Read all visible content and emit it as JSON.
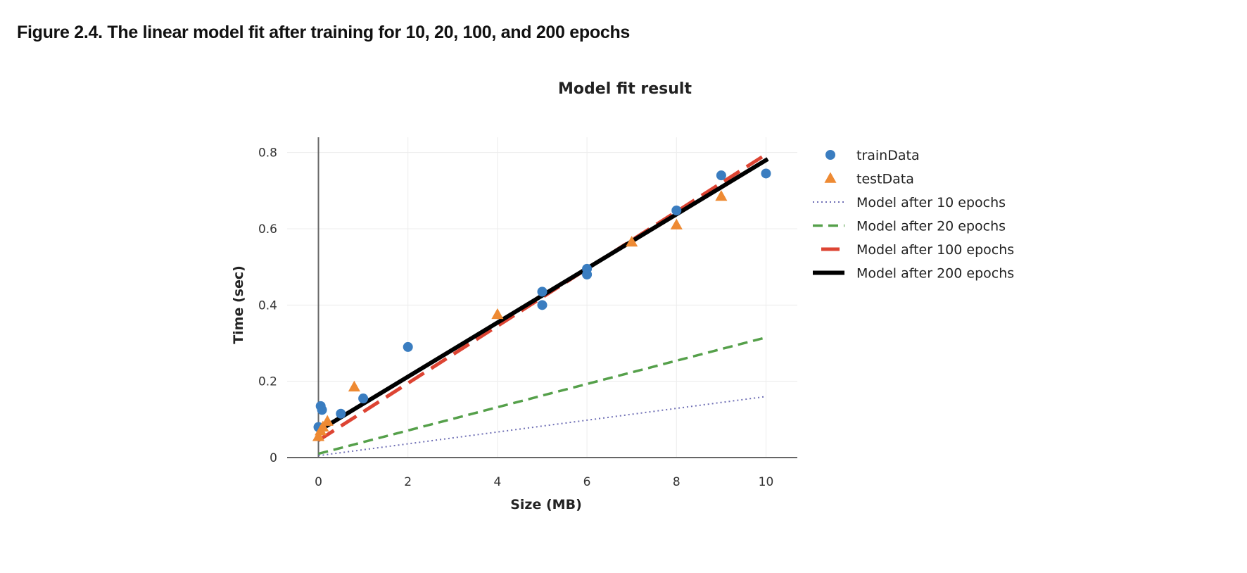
{
  "figure": {
    "caption": "Figure 2.4. The linear model fit after training for 10, 20, 100, and 200 epochs"
  },
  "chart_data": {
    "type": "scatter",
    "title": "Model fit result",
    "xlabel": "Size (MB)",
    "ylabel": "Time (sec)",
    "xlim": [
      -0.7,
      10.7
    ],
    "ylim": [
      0,
      0.84
    ],
    "x_ticks": [
      0,
      2,
      4,
      6,
      8,
      10
    ],
    "y_ticks": [
      0,
      0.2,
      0.4,
      0.6,
      0.8
    ],
    "y_tick_labels": [
      "0",
      "0.2",
      "0.4",
      "0.6",
      "0.8"
    ],
    "grid": true,
    "legend_position": "right",
    "series": [
      {
        "name": "trainData",
        "kind": "points",
        "marker": "circle",
        "color": "#3a7dc0",
        "x": [
          0.0,
          0.05,
          0.08,
          0.5,
          1.0,
          2.0,
          5.0,
          5.0,
          6.0,
          6.0,
          8.0,
          9.0,
          10.0
        ],
        "y": [
          0.08,
          0.135,
          0.125,
          0.115,
          0.155,
          0.29,
          0.435,
          0.4,
          0.495,
          0.48,
          0.648,
          0.74,
          0.745
        ]
      },
      {
        "name": "testData",
        "kind": "points",
        "marker": "triangle",
        "color": "#ee8a33",
        "x": [
          0.0,
          0.05,
          0.1,
          0.2,
          0.8,
          4.0,
          7.0,
          8.0,
          9.0
        ],
        "y": [
          0.055,
          0.07,
          0.08,
          0.095,
          0.185,
          0.375,
          0.565,
          0.61,
          0.685
        ]
      },
      {
        "name": "Model after 10 epochs",
        "kind": "line",
        "style": "dotted",
        "color": "#6f6fb5",
        "x": [
          0,
          10
        ],
        "y": [
          0.005,
          0.16
        ]
      },
      {
        "name": "Model after 20 epochs",
        "kind": "line",
        "style": "dashed",
        "color": "#55a04a",
        "x": [
          0,
          10
        ],
        "y": [
          0.01,
          0.315
        ]
      },
      {
        "name": "Model after 100 epochs",
        "kind": "line",
        "style": "longdash",
        "color": "#dd4433",
        "x": [
          0,
          10
        ],
        "y": [
          0.045,
          0.795
        ]
      },
      {
        "name": "Model after 200 epochs",
        "kind": "line",
        "style": "solid",
        "color": "#000000",
        "x": [
          0,
          10
        ],
        "y": [
          0.07,
          0.78
        ]
      }
    ]
  }
}
